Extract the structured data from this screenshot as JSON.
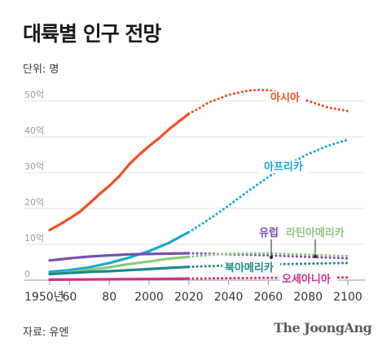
{
  "title": "대륙별 인구 전망",
  "unit": "단위: 명",
  "source": "자료: 유엔",
  "brand": "The JoongAng",
  "chart_data": {
    "type": "line",
    "title": "대륙별 인구 전망",
    "unit": "명",
    "grid": true,
    "ylim": [
      0,
      5500000000.0
    ],
    "xlim": [
      1950,
      2100
    ],
    "x_ticks": [
      "1950년",
      "60",
      "80",
      "2000",
      "2020",
      "2040",
      "2060",
      "2080",
      "2100"
    ],
    "x_tick_values": [
      1950,
      1960,
      1980,
      2000,
      2020,
      2040,
      2060,
      2080,
      2100
    ],
    "y_ticks": [
      "0",
      "10억",
      "20억",
      "30억",
      "40억",
      "50억"
    ],
    "y_tick_values": [
      0,
      1000000000.0,
      2000000000.0,
      3000000000.0,
      4000000000.0,
      5000000000.0
    ],
    "projection_start": 2020,
    "series": [
      {
        "name": "아시아",
        "color": "#f04e23",
        "points": [
          [
            1950,
            1400000000.0
          ],
          [
            1955,
            1550000000.0
          ],
          [
            1960,
            1720000000.0
          ],
          [
            1965,
            1900000000.0
          ],
          [
            1970,
            2140000000.0
          ],
          [
            1975,
            2400000000.0
          ],
          [
            1980,
            2630000000.0
          ],
          [
            1985,
            2900000000.0
          ],
          [
            1990,
            3230000000.0
          ],
          [
            1995,
            3500000000.0
          ],
          [
            2000,
            3740000000.0
          ],
          [
            2005,
            3960000000.0
          ],
          [
            2010,
            4210000000.0
          ],
          [
            2015,
            4430000000.0
          ],
          [
            2020,
            4640000000.0
          ],
          [
            2025,
            4790000000.0
          ],
          [
            2030,
            4960000000.0
          ],
          [
            2040,
            5170000000.0
          ],
          [
            2050,
            5290000000.0
          ],
          [
            2055,
            5310000000.0
          ],
          [
            2060,
            5300000000.0
          ],
          [
            2070,
            5190000000.0
          ],
          [
            2080,
            5000000000.0
          ],
          [
            2090,
            4820000000.0
          ],
          [
            2100,
            4720000000.0
          ]
        ]
      },
      {
        "name": "아프리카",
        "color": "#1aa8cf",
        "points": [
          [
            1950,
            230000000.0
          ],
          [
            1960,
            280000000.0
          ],
          [
            1970,
            360000000.0
          ],
          [
            1980,
            480000000.0
          ],
          [
            1990,
            630000000.0
          ],
          [
            2000,
            810000000.0
          ],
          [
            2010,
            1040000000.0
          ],
          [
            2020,
            1340000000.0
          ],
          [
            2030,
            1690000000.0
          ],
          [
            2040,
            2080000000.0
          ],
          [
            2050,
            2490000000.0
          ],
          [
            2060,
            2880000000.0
          ],
          [
            2070,
            3230000000.0
          ],
          [
            2080,
            3520000000.0
          ],
          [
            2090,
            3750000000.0
          ],
          [
            2100,
            3920000000.0
          ]
        ]
      },
      {
        "name": "유럽",
        "color": "#7a4fb0",
        "points": [
          [
            1950,
            550000000.0
          ],
          [
            1960,
            610000000.0
          ],
          [
            1970,
            660000000.0
          ],
          [
            1980,
            690000000.0
          ],
          [
            1990,
            720000000.0
          ],
          [
            2000,
            730000000.0
          ],
          [
            2010,
            740000000.0
          ],
          [
            2020,
            750000000.0
          ],
          [
            2030,
            740000000.0
          ],
          [
            2040,
            720000000.0
          ],
          [
            2050,
            710000000.0
          ],
          [
            2060,
            690000000.0
          ],
          [
            2070,
            670000000.0
          ],
          [
            2080,
            650000000.0
          ],
          [
            2090,
            630000000.0
          ],
          [
            2100,
            610000000.0
          ]
        ]
      },
      {
        "name": "라틴아메리카",
        "color": "#8cc97e",
        "points": [
          [
            1950,
            170000000.0
          ],
          [
            1960,
            220000000.0
          ],
          [
            1970,
            290000000.0
          ],
          [
            1980,
            360000000.0
          ],
          [
            1990,
            450000000.0
          ],
          [
            2000,
            520000000.0
          ],
          [
            2010,
            600000000.0
          ],
          [
            2020,
            650000000.0
          ],
          [
            2030,
            700000000.0
          ],
          [
            2040,
            740000000.0
          ],
          [
            2050,
            750000000.0
          ],
          [
            2060,
            750000000.0
          ],
          [
            2070,
            730000000.0
          ],
          [
            2080,
            710000000.0
          ],
          [
            2090,
            690000000.0
          ],
          [
            2100,
            670000000.0
          ]
        ]
      },
      {
        "name": "북아메리카",
        "color": "#1a8a8a",
        "points": [
          [
            1950,
            170000000.0
          ],
          [
            1960,
            200000000.0
          ],
          [
            1970,
            230000000.0
          ],
          [
            1980,
            250000000.0
          ],
          [
            1990,
            280000000.0
          ],
          [
            2000,
            310000000.0
          ],
          [
            2010,
            340000000.0
          ],
          [
            2020,
            370000000.0
          ],
          [
            2030,
            390000000.0
          ],
          [
            2040,
            410000000.0
          ],
          [
            2050,
            430000000.0
          ],
          [
            2060,
            440000000.0
          ],
          [
            2070,
            450000000.0
          ],
          [
            2080,
            460000000.0
          ],
          [
            2090,
            470000000.0
          ],
          [
            2100,
            480000000.0
          ]
        ]
      },
      {
        "name": "오세아니아",
        "color": "#d62e8a",
        "points": [
          [
            1950,
            13000000.0
          ],
          [
            1970,
            20000000.0
          ],
          [
            2000,
            31000000.0
          ],
          [
            2020,
            43000000.0
          ],
          [
            2040,
            55000000.0
          ],
          [
            2060,
            63000000.0
          ],
          [
            2080,
            69000000.0
          ],
          [
            2100,
            75000000.0
          ]
        ]
      }
    ]
  }
}
